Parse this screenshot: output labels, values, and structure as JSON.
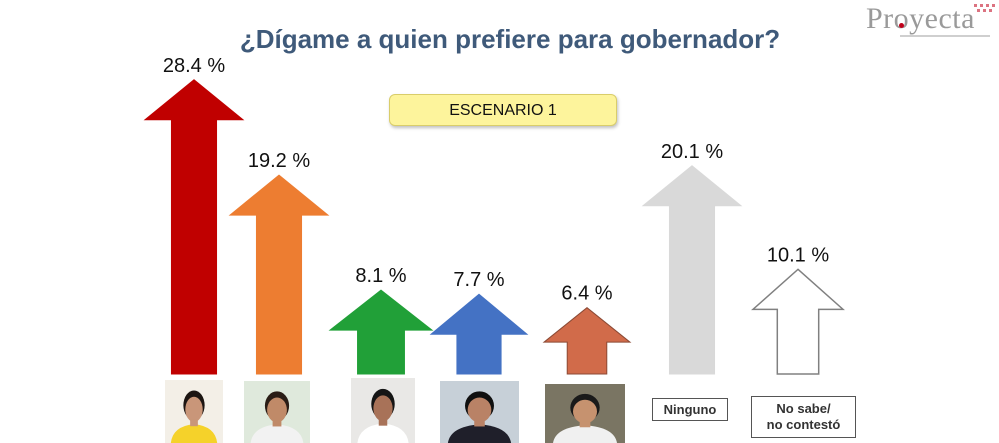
{
  "logo": {
    "text": "Proyecta"
  },
  "title": "¿Dígame a quien prefiere para gobernador?",
  "scenario_label": "ESCENARIO 1",
  "labels": {
    "ninguno": "Ninguno",
    "no_sabe_line1": "No sabe/",
    "no_sabe_line2": "no contestó"
  },
  "chart_data": {
    "type": "bar",
    "title": "¿Dígame a quien prefiere para gobernador?",
    "subtitle": "ESCENARIO 1",
    "unit": "%",
    "ylim": [
      0,
      30
    ],
    "series": [
      {
        "values": [
          28.4,
          19.2,
          8.1,
          7.7,
          6.4,
          20.1,
          10.1
        ],
        "data_labels": [
          "28.4 %",
          "19.2 %",
          "8.1 %",
          "7.7 %",
          "6.4 %",
          "20.1 %",
          "10.1 %"
        ]
      }
    ],
    "categories": [
      "",
      "",
      "",
      "",
      "",
      "Ninguno",
      "No sabe/ no contestó"
    ],
    "colors": [
      "#c00000",
      "#ed7d31",
      "#21a038",
      "#4472c4",
      "#d16b4a",
      "#d9d9d9",
      "#ffffff"
    ],
    "outline_colors": [
      "#c00000",
      "#ed7d31",
      "#21a038",
      "#4472c4",
      "#8c4a35",
      "#d9d9d9",
      "#808080"
    ],
    "marker": "arrow-up",
    "photo_tones": [
      {
        "bg": "#f3efe7",
        "hair": "#1c1512",
        "skin": "#c99679",
        "shirt": "#f5d22a"
      },
      {
        "bg": "#dfe9dc",
        "hair": "#2a1d16",
        "skin": "#c08a68",
        "shirt": "#f2f2f2"
      },
      {
        "bg": "#e9e8e6",
        "hair": "#151515",
        "skin": "#a87258",
        "shirt": "#ffffff"
      },
      {
        "bg": "#c7d0d8",
        "hair": "#101010",
        "skin": "#b98266",
        "shirt": "#1f1f2a"
      },
      {
        "bg": "#7a7563",
        "hair": "#1a1a1a",
        "skin": "#c6926f",
        "shirt": "#f0f0f0"
      }
    ]
  }
}
